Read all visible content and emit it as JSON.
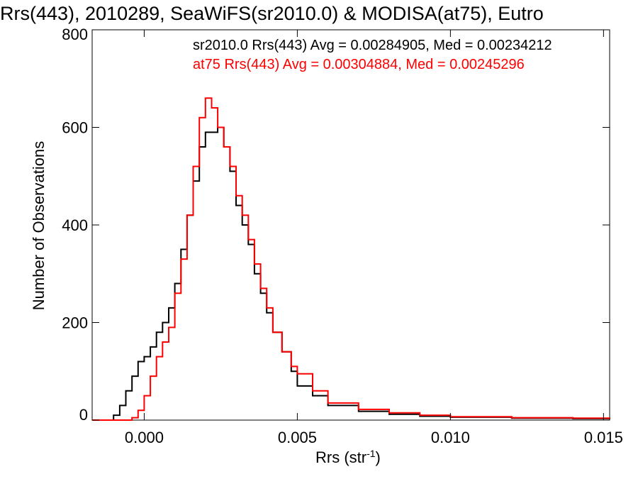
{
  "chart_data": {
    "type": "line",
    "title": "Rrs(443), 2010289, SeaWiFS(sr2010.0) & MODISA(at75), Eutro",
    "xlabel_main": "Rrs (str",
    "xlabel_sup": "-1",
    "xlabel_close": ")",
    "ylabel": "Number of Observations",
    "xlim": [
      -0.0017,
      0.0152
    ],
    "ylim": [
      0,
      800
    ],
    "x_ticks": [
      0.0,
      0.005,
      0.01,
      0.015
    ],
    "x_tick_labels": [
      "0.000",
      "0.005",
      "0.010",
      "0.015"
    ],
    "y_ticks": [
      0,
      200,
      400,
      600,
      800
    ],
    "y_tick_labels": [
      "0",
      "200",
      "400",
      "600",
      "800"
    ],
    "stats": [
      "sr2010.0 Rrs(443) Avg = 0.00284905, Med = 0.00234212",
      "at75 Rrs(443) Avg = 0.00304884, Med = 0.00245296"
    ],
    "series": [
      {
        "name": "sr2010.0",
        "color": "#000000",
        "points": [
          [
            -0.0017,
            0
          ],
          [
            -0.0011,
            0
          ],
          [
            -0.001,
            10
          ],
          [
            -0.0008,
            30
          ],
          [
            -0.0006,
            60
          ],
          [
            -0.0004,
            90
          ],
          [
            -0.0002,
            120
          ],
          [
            0.0,
            130
          ],
          [
            0.0002,
            150
          ],
          [
            0.0004,
            180
          ],
          [
            0.0006,
            200
          ],
          [
            0.0008,
            230
          ],
          [
            0.001,
            280
          ],
          [
            0.0012,
            350
          ],
          [
            0.0014,
            420
          ],
          [
            0.0016,
            490
          ],
          [
            0.0018,
            560
          ],
          [
            0.002,
            590
          ],
          [
            0.0022,
            590
          ],
          [
            0.0024,
            600
          ],
          [
            0.0026,
            560
          ],
          [
            0.0028,
            510
          ],
          [
            0.003,
            440
          ],
          [
            0.0032,
            400
          ],
          [
            0.0034,
            360
          ],
          [
            0.0036,
            300
          ],
          [
            0.0038,
            260
          ],
          [
            0.004,
            220
          ],
          [
            0.0042,
            180
          ],
          [
            0.0045,
            140
          ],
          [
            0.0048,
            100
          ],
          [
            0.005,
            70
          ],
          [
            0.0055,
            50
          ],
          [
            0.006,
            30
          ],
          [
            0.007,
            18
          ],
          [
            0.008,
            12
          ],
          [
            0.009,
            8
          ],
          [
            0.01,
            6
          ],
          [
            0.012,
            4
          ],
          [
            0.014,
            3
          ],
          [
            0.0152,
            2
          ]
        ]
      },
      {
        "name": "at75",
        "color": "#ff0000",
        "points": [
          [
            -0.0017,
            0
          ],
          [
            -0.0005,
            0
          ],
          [
            -0.0004,
            5
          ],
          [
            -0.0002,
            20
          ],
          [
            0.0,
            50
          ],
          [
            0.0002,
            90
          ],
          [
            0.0004,
            130
          ],
          [
            0.0006,
            160
          ],
          [
            0.0008,
            190
          ],
          [
            0.001,
            260
          ],
          [
            0.0012,
            330
          ],
          [
            0.0014,
            420
          ],
          [
            0.0016,
            520
          ],
          [
            0.0018,
            620
          ],
          [
            0.002,
            660
          ],
          [
            0.0022,
            640
          ],
          [
            0.0024,
            600
          ],
          [
            0.0026,
            560
          ],
          [
            0.0028,
            520
          ],
          [
            0.003,
            460
          ],
          [
            0.0032,
            420
          ],
          [
            0.0034,
            370
          ],
          [
            0.0036,
            320
          ],
          [
            0.0038,
            270
          ],
          [
            0.004,
            230
          ],
          [
            0.0042,
            180
          ],
          [
            0.0045,
            140
          ],
          [
            0.0048,
            110
          ],
          [
            0.005,
            95
          ],
          [
            0.0055,
            60
          ],
          [
            0.006,
            35
          ],
          [
            0.007,
            22
          ],
          [
            0.008,
            15
          ],
          [
            0.009,
            10
          ],
          [
            0.01,
            7
          ],
          [
            0.012,
            5
          ],
          [
            0.014,
            4
          ],
          [
            0.0152,
            3
          ]
        ]
      }
    ]
  }
}
